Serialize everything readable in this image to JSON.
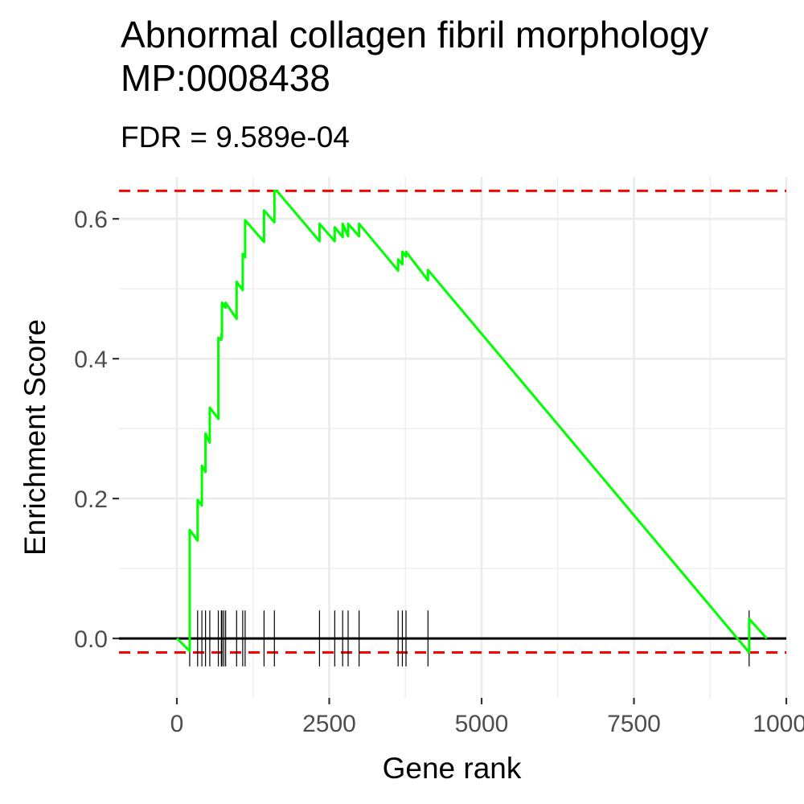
{
  "title": "Abnormal collagen fibril morphology MP:0008438",
  "subtitle": "FDR = 9.589e-04",
  "chart_data": {
    "type": "line",
    "title": "Abnormal collagen fibril morphology MP:0008438",
    "subtitle": "FDR = 9.589e-04",
    "xlabel": "Gene rank",
    "ylabel": "Enrichment Score",
    "xlim": [
      -950,
      10000
    ],
    "ylim": [
      -0.085,
      0.66
    ],
    "x_ticks": [
      0,
      2500,
      5000,
      7500,
      10000
    ],
    "x_tick_labels": [
      "0",
      "2500",
      "5000",
      "7500",
      "10000"
    ],
    "y_ticks": [
      0.0,
      0.2,
      0.4,
      0.6
    ],
    "y_tick_labels": [
      "0.0",
      "0.2",
      "0.4",
      "0.6"
    ],
    "grid": true,
    "enrichment_curve": {
      "x": [
        0,
        210,
        210,
        340,
        340,
        410,
        410,
        470,
        470,
        540,
        540,
        680,
        680,
        730,
        730,
        740,
        740,
        770,
        770,
        800,
        800,
        980,
        980,
        1080,
        1080,
        1120,
        1120,
        1430,
        1430,
        1600,
        1600,
        1640,
        2340,
        2340,
        2590,
        2590,
        2720,
        2720,
        2810,
        2810,
        2990,
        2990,
        3630,
        3630,
        3700,
        3700,
        3760,
        3760,
        4120,
        4120,
        9390,
        9390,
        9680
      ],
      "y": [
        0.0,
        -0.018,
        0.155,
        0.14,
        0.198,
        0.19,
        0.247,
        0.238,
        0.293,
        0.28,
        0.33,
        0.314,
        0.43,
        0.427,
        0.435,
        0.432,
        0.48,
        0.478,
        0.476,
        0.473,
        0.48,
        0.457,
        0.51,
        0.498,
        0.55,
        0.545,
        0.598,
        0.567,
        0.612,
        0.595,
        0.64,
        0.64,
        0.568,
        0.593,
        0.568,
        0.588,
        0.574,
        0.593,
        0.575,
        0.593,
        0.575,
        0.593,
        0.526,
        0.542,
        0.535,
        0.553,
        0.546,
        0.553,
        0.512,
        0.527,
        -0.02,
        0.028,
        0.0
      ]
    },
    "max_score_line": 0.64,
    "min_score_line": -0.02,
    "zero_line": 0.0,
    "hit_ranks": [
      210,
      340,
      410,
      470,
      540,
      680,
      730,
      740,
      770,
      800,
      980,
      1080,
      1120,
      1430,
      1600,
      2340,
      2590,
      2720,
      2810,
      2990,
      3630,
      3700,
      3760,
      4120,
      9390
    ],
    "colors": {
      "curve": "#00ff00",
      "threshold_lines": "#ff0000",
      "zero_line": "#000000",
      "hits": "#000000",
      "grid": "#ebebeb"
    }
  }
}
